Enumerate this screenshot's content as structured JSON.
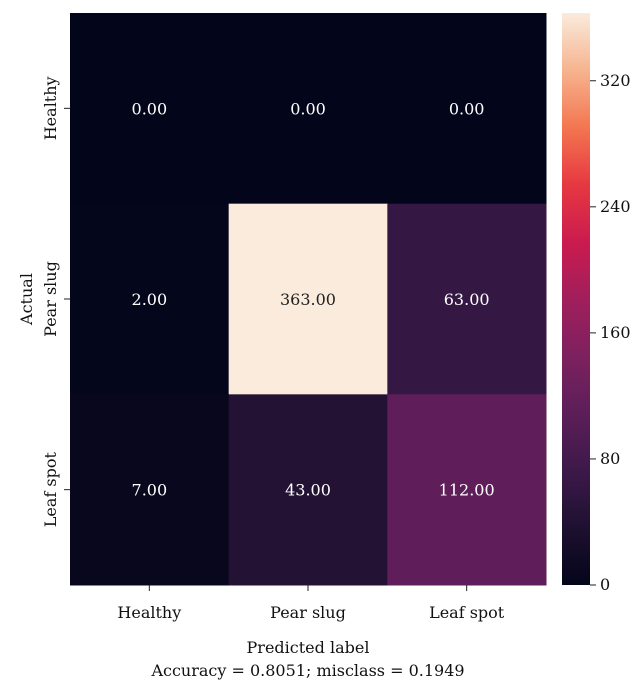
{
  "chart_data": {
    "type": "heatmap",
    "title": "",
    "xlabel": "Predicted label",
    "ylabel": "Actual",
    "caption": "Accuracy = 0.8051; misclass = 0.1949",
    "x_categories": [
      "Healthy",
      "Pear slug",
      "Leaf spot"
    ],
    "y_categories": [
      "Healthy",
      "Pear slug",
      "Leaf spot"
    ],
    "values": [
      [
        0,
        0,
        0
      ],
      [
        2,
        363,
        63
      ],
      [
        7,
        43,
        112
      ]
    ],
    "value_labels": [
      [
        "0.00",
        "0.00",
        "0.00"
      ],
      [
        "2.00",
        "363.00",
        "63.00"
      ],
      [
        "7.00",
        "43.00",
        "112.00"
      ]
    ],
    "colorbar": {
      "min": 0,
      "max": 363,
      "ticks": [
        0,
        80,
        160,
        240,
        320
      ],
      "tick_labels": [
        "0",
        "80",
        "160",
        "240",
        "320"
      ],
      "colormap": "rocket"
    },
    "grid": false,
    "legend": "colorbar-right"
  }
}
